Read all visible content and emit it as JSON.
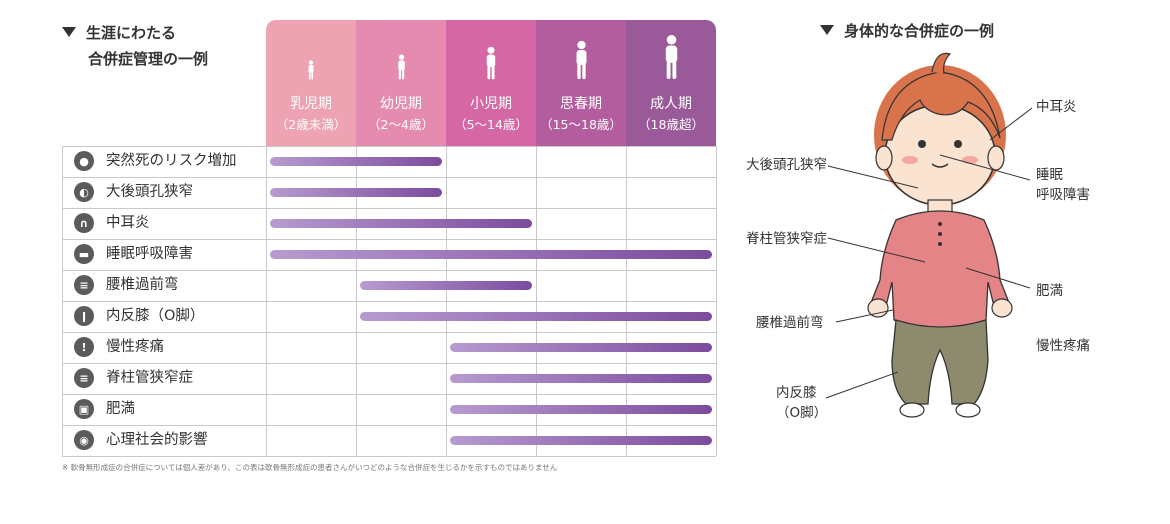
{
  "left_title_line1": "生涯にわたる",
  "left_title_line2": "合併症管理の一例",
  "right_title": "身体的な合併症の一例",
  "stages": [
    {
      "name": "乳児期",
      "age": "（2歳未満）",
      "color": "#eda3b1"
    },
    {
      "name": "幼児期",
      "age": "（2〜4歳）",
      "color": "#e58bb0"
    },
    {
      "name": "小児期",
      "age": "（5〜14歳）",
      "color": "#d567a5"
    },
    {
      "name": "思春期",
      "age": "（15〜18歳）",
      "color": "#b45d9e"
    },
    {
      "name": "成人期",
      "age": "（18歳超）",
      "color": "#9a5a99"
    }
  ],
  "conditions": [
    {
      "label": "突然死のリスク増加",
      "icon": "face-icon",
      "start": 0,
      "end": 2
    },
    {
      "label": "大後頭孔狭窄",
      "icon": "skull-icon",
      "start": 0,
      "end": 2
    },
    {
      "label": "中耳炎",
      "icon": "ear-icon",
      "start": 0,
      "end": 3
    },
    {
      "label": "睡眠呼吸障害",
      "icon": "bed-icon",
      "start": 0,
      "end": 5
    },
    {
      "label": "腰椎過前弯",
      "icon": "spine-icon",
      "start": 1,
      "end": 3
    },
    {
      "label": "内反膝（O脚）",
      "icon": "leg-icon",
      "start": 1,
      "end": 5
    },
    {
      "label": "慢性疼痛",
      "icon": "alert-icon",
      "start": 2,
      "end": 5
    },
    {
      "label": "脊柱管狭窄症",
      "icon": "vertebra-icon",
      "start": 2,
      "end": 5
    },
    {
      "label": "肥満",
      "icon": "scale-icon",
      "start": 2,
      "end": 5
    },
    {
      "label": "心理社会的影響",
      "icon": "brain-icon",
      "start": 2,
      "end": 5
    }
  ],
  "footnote": "※ 軟骨無形成症の合併症については個人差があり、この表は軟骨無形成症の患者さんがいつどのような合併症を生じるかを示すものではありません",
  "body_labels": {
    "otitis": "中耳炎",
    "sleep_1": "睡眠",
    "sleep_2": "呼吸障害",
    "foramen": "大後頭孔狭窄",
    "spinal": "脊柱管狭窄症",
    "obesity": "肥満",
    "lordosis": "腰椎過前弯",
    "pain": "慢性疼痛",
    "genu_1": "内反膝",
    "genu_2": "（O脚）"
  }
}
